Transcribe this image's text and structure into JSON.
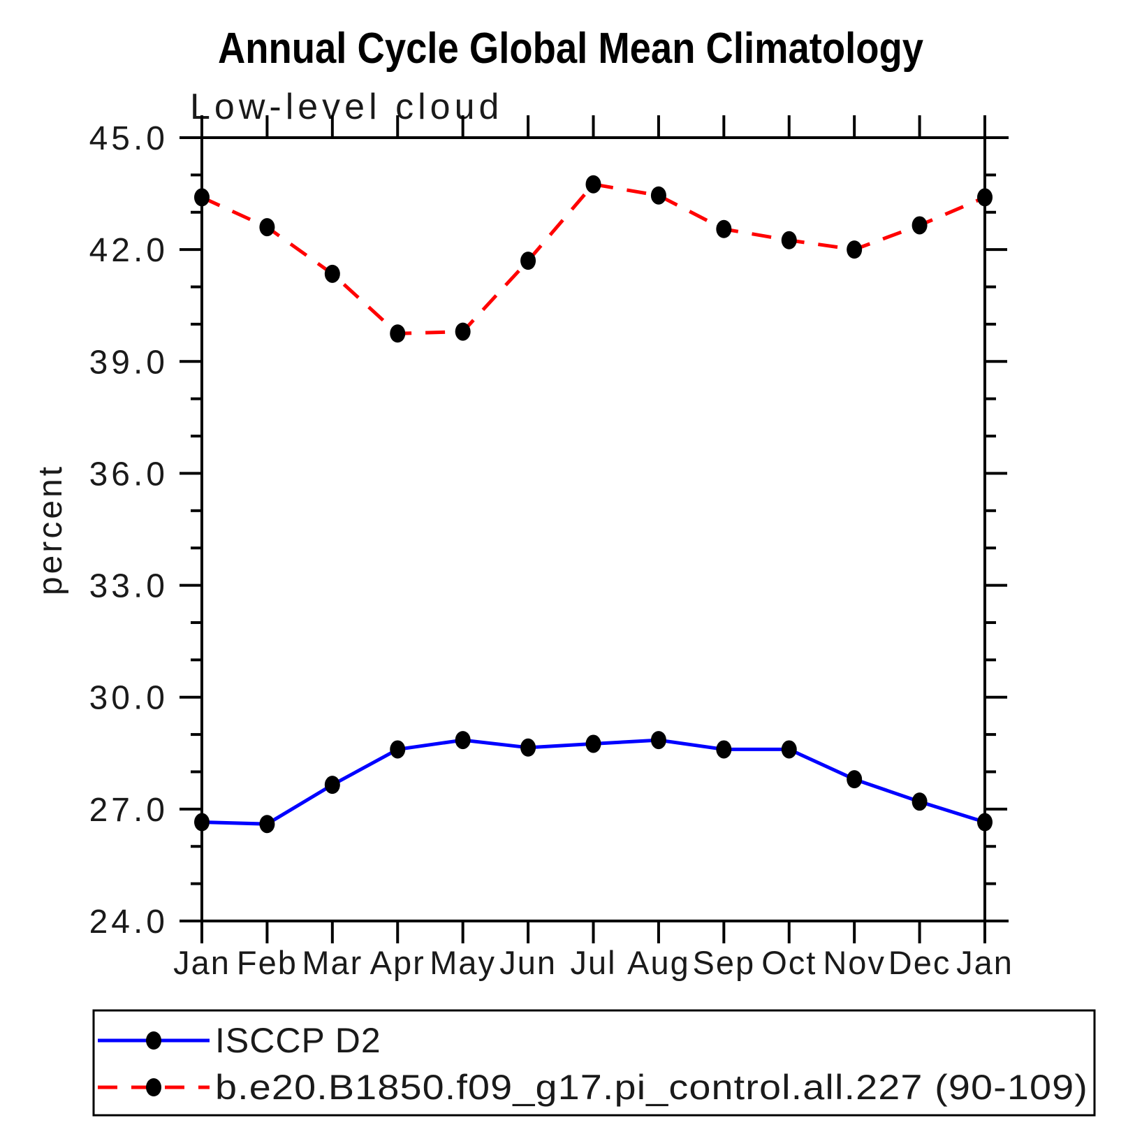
{
  "title": "Annual Cycle Global Mean Climatology",
  "subtitle": "Low-level cloud",
  "chart_data": {
    "type": "line",
    "categories": [
      "Jan",
      "Feb",
      "Mar",
      "Apr",
      "May",
      "Jun",
      "Jul",
      "Aug",
      "Sep",
      "Oct",
      "Nov",
      "Dec",
      "Jan"
    ],
    "xlabel": "",
    "ylabel": "percent",
    "ylim": [
      24.0,
      45.0
    ],
    "y_major_tick_step": 3.0,
    "y_minor_tick_step": 1.0,
    "y_tick_labels": [
      "24.0",
      "27.0",
      "30.0",
      "33.0",
      "36.0",
      "39.0",
      "42.0",
      "45.0"
    ],
    "grid": false,
    "legend_position": "bottom-left-box",
    "marker_color": "#000000",
    "axis_color": "#000000",
    "series": [
      {
        "name": "ISCCP D2",
        "line_color": "#0000ff",
        "line_style": "solid",
        "marker": "black-dot",
        "values": [
          26.65,
          26.6,
          27.65,
          28.6,
          28.85,
          28.65,
          28.75,
          28.85,
          28.6,
          28.6,
          27.8,
          27.2,
          26.65
        ]
      },
      {
        "name": "b.e20.B1850.f09_g17.pi_control.all.227 (90-109)",
        "line_color": "#ff0000",
        "line_style": "dashed",
        "marker": "black-dot",
        "values": [
          43.4,
          42.6,
          41.35,
          39.75,
          39.8,
          41.7,
          43.75,
          43.45,
          42.55,
          42.25,
          42.0,
          42.65,
          43.4
        ]
      }
    ]
  }
}
